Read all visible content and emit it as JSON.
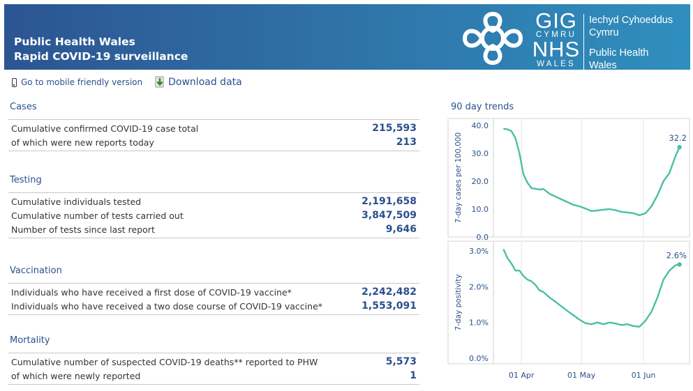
{
  "header": {
    "title_line1": "Public Health Wales",
    "title_line2": "Rapid COVID-19 surveillance",
    "logo": {
      "gig": "GIG",
      "cymru": "CYMRU",
      "nhs": "NHS",
      "wales": "WALES",
      "org_welsh_line1": "Iechyd Cyhoeddus",
      "org_welsh_line2": "Cymru",
      "org_english_line1": "Public Health",
      "org_english_line2": "Wales"
    }
  },
  "toolbar": {
    "mobile_icon": "phone-icon",
    "mobile_link": "Go to mobile friendly version",
    "download_icon": "download-icon",
    "download_link": "Download data"
  },
  "sections": {
    "cases": {
      "title": "Cases",
      "rows": [
        {
          "label": "Cumulative confirmed COVID-19 case total",
          "value": "215,593"
        },
        {
          "label": "of which were new reports today",
          "value": "213"
        }
      ]
    },
    "testing": {
      "title": "Testing",
      "rows": [
        {
          "label": "Cumulative individuals tested",
          "value": "2,191,658"
        },
        {
          "label": "Cumulative number of tests carried out",
          "value": "3,847,509"
        },
        {
          "label": "Number of tests since last report",
          "value": "9,646"
        }
      ]
    },
    "vaccination": {
      "title": "Vaccination",
      "rows": [
        {
          "label": "Individuals who have received a first dose of COVID-19 vaccine*",
          "value": "2,242,482"
        },
        {
          "label": "Individuals who have received a two dose course of COVID-19 vaccine*",
          "value": "1,553,091"
        }
      ]
    },
    "mortality": {
      "title": "Mortality",
      "rows": [
        {
          "label": "Cumulative number of suspected COVID-19 deaths** reported to PHW",
          "value": "5,573"
        },
        {
          "label": "of which were newly reported",
          "value": "1"
        }
      ]
    }
  },
  "trends_title": "90 day trends",
  "colors": {
    "banner_start": "#2c5592",
    "banner_end": "#2f8fbe",
    "accent_text": "#2b4f8c",
    "line": "#4bbfa5"
  },
  "chart_data": [
    {
      "type": "line",
      "ylabel": "7-day cases per 100,000",
      "yticks": [
        "0.0",
        "10.0",
        "20.0",
        "30.0",
        "40.0"
      ],
      "ylim": [
        0,
        40
      ],
      "xticks": [
        "01 Apr",
        "01 May",
        "01 Jun"
      ],
      "end_label": "32.2",
      "series": [
        {
          "x": [
            "2021-03-23",
            "2021-03-25",
            "2021-03-27",
            "2021-03-29",
            "2021-03-31",
            "2021-04-02",
            "2021-04-04",
            "2021-04-06",
            "2021-04-08",
            "2021-04-10",
            "2021-04-12",
            "2021-04-15",
            "2021-04-18",
            "2021-04-21",
            "2021-04-24",
            "2021-04-27",
            "2021-04-30",
            "2021-05-03",
            "2021-05-06",
            "2021-05-09",
            "2021-05-12",
            "2021-05-15",
            "2021-05-18",
            "2021-05-21",
            "2021-05-24",
            "2021-05-27",
            "2021-05-30",
            "2021-06-02",
            "2021-06-05",
            "2021-06-08",
            "2021-06-11",
            "2021-06-14",
            "2021-06-17",
            "2021-06-19"
          ],
          "values": [
            38.8,
            38.6,
            38.0,
            35.5,
            30.0,
            22.5,
            19.5,
            17.5,
            17.3,
            17.0,
            17.2,
            15.5,
            14.5,
            13.5,
            12.5,
            11.5,
            11.0,
            10.2,
            9.3,
            9.5,
            9.8,
            10.0,
            9.6,
            9.0,
            8.8,
            8.5,
            7.8,
            8.5,
            11.0,
            15.0,
            20.0,
            23.0,
            29.0,
            32.2
          ]
        }
      ]
    },
    {
      "type": "line",
      "ylabel": "7-day positivity",
      "yticks": [
        "0.0%",
        "1.0%",
        "2.0%",
        "3.0%"
      ],
      "ylim": [
        0,
        3
      ],
      "xticks": [
        "01 Apr",
        "01 May",
        "01 Jun"
      ],
      "end_label": "2.6%",
      "series": [
        {
          "x": [
            "2021-03-23",
            "2021-03-25",
            "2021-03-27",
            "2021-03-29",
            "2021-03-31",
            "2021-04-02",
            "2021-04-04",
            "2021-04-06",
            "2021-04-08",
            "2021-04-10",
            "2021-04-12",
            "2021-04-15",
            "2021-04-18",
            "2021-04-21",
            "2021-04-24",
            "2021-04-27",
            "2021-04-30",
            "2021-05-03",
            "2021-05-06",
            "2021-05-09",
            "2021-05-12",
            "2021-05-15",
            "2021-05-18",
            "2021-05-21",
            "2021-05-24",
            "2021-05-27",
            "2021-05-30",
            "2021-06-02",
            "2021-06-05",
            "2021-06-08",
            "2021-06-11",
            "2021-06-14",
            "2021-06-17",
            "2021-06-19"
          ],
          "values": [
            3.05,
            2.8,
            2.65,
            2.45,
            2.45,
            2.3,
            2.2,
            2.15,
            2.05,
            1.9,
            1.85,
            1.7,
            1.58,
            1.45,
            1.32,
            1.2,
            1.08,
            0.98,
            0.95,
            1.0,
            0.95,
            1.0,
            0.97,
            0.93,
            0.95,
            0.9,
            0.88,
            1.05,
            1.3,
            1.7,
            2.2,
            2.45,
            2.6,
            2.62
          ]
        }
      ]
    }
  ]
}
